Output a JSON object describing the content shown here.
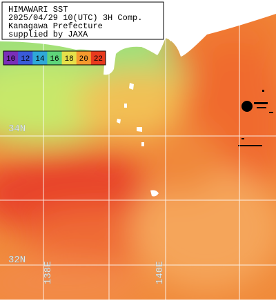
{
  "header": {
    "lines": [
      "HIMAWARI SST",
      "2025/04/29 10(UTC) 3H Comp.",
      "Kanagawa Prefecture",
      "supplied by JAXA"
    ]
  },
  "legend": {
    "values": [
      10,
      12,
      14,
      16,
      18,
      20,
      22
    ],
    "colors": [
      "#7a2fb8",
      "#3a5bd8",
      "#2fa8d8",
      "#5ed47a",
      "#e6e04a",
      "#f59a2e",
      "#e83a1e"
    ]
  },
  "grid_labels": {
    "lat": [
      "34N",
      "32N"
    ],
    "lon": [
      "138E",
      "140E"
    ]
  }
}
